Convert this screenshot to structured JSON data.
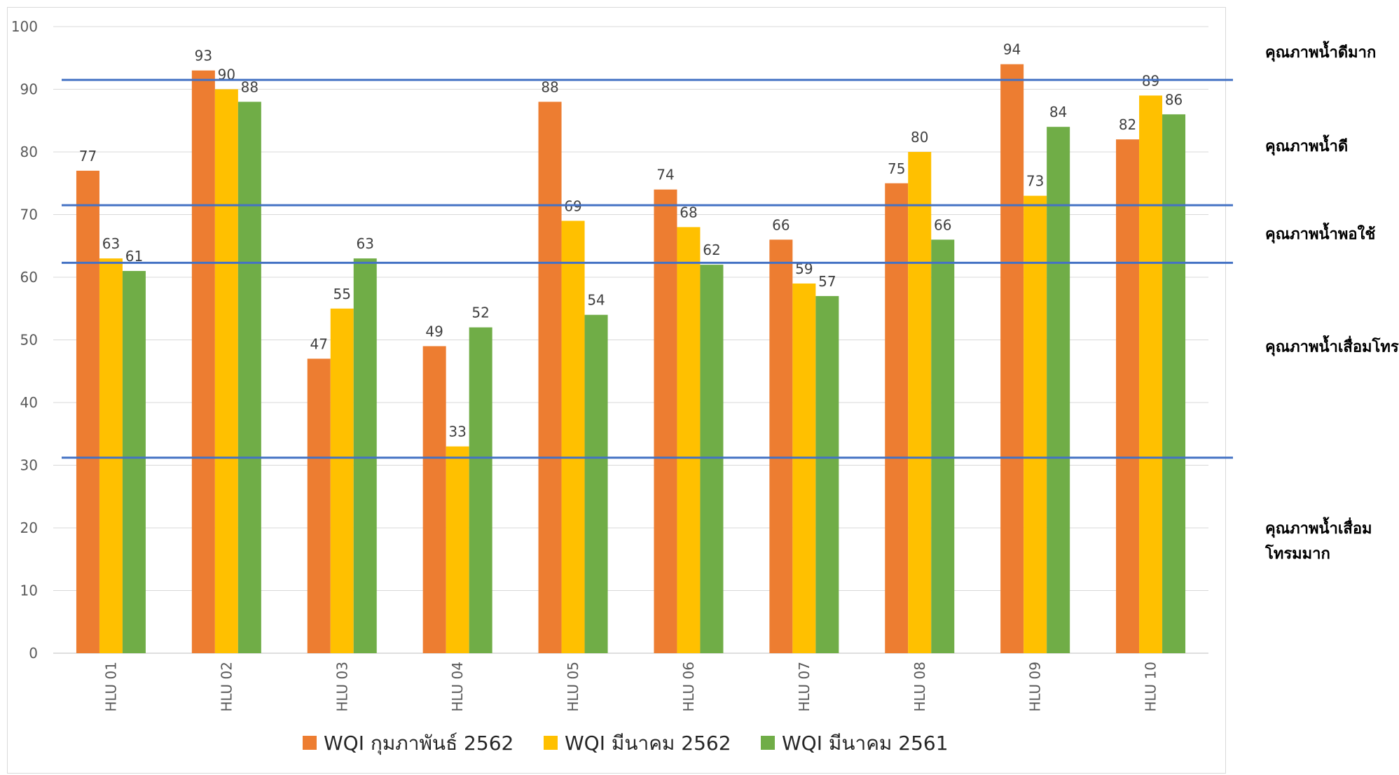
{
  "chart_data": {
    "type": "bar",
    "categories": [
      "HLU 01",
      "HLU 02",
      "HLU 03",
      "HLU 04",
      "HLU 05",
      "HLU 06",
      "HLU 07",
      "HLU 08",
      "HLU 09",
      "HLU 10"
    ],
    "series": [
      {
        "name": "WQI กุมภาพันธ์ 2562",
        "color": "#ED7D31",
        "values": [
          77,
          93,
          47,
          49,
          88,
          74,
          66,
          75,
          94,
          82
        ]
      },
      {
        "name": "WQI มีนาคม 2562",
        "color": "#FFC000",
        "values": [
          63,
          90,
          55,
          33,
          69,
          68,
          59,
          80,
          73,
          89
        ]
      },
      {
        "name": "WQI มีนาคม 2561",
        "color": "#70AD47",
        "values": [
          61,
          88,
          63,
          52,
          54,
          62,
          57,
          66,
          84,
          86
        ]
      }
    ],
    "ylim": [
      0,
      100
    ],
    "yticks": [
      0,
      10,
      20,
      30,
      40,
      50,
      60,
      70,
      80,
      90,
      100
    ],
    "grid": true,
    "legend": "bottom",
    "threshold_lines": {
      "color": "#4472C4",
      "values": [
        91.5,
        71.5,
        62.3,
        31.2
      ]
    },
    "quality_bands": [
      {
        "lines": [
          "คุณภาพน้ำดีมาก"
        ],
        "y": 96
      },
      {
        "lines": [
          "คุณภาพน้ำดี"
        ],
        "y": 81
      },
      {
        "lines": [
          "คุณภาพน้ำพอใช้"
        ],
        "y": 67
      },
      {
        "lines": [
          "คุณภาพน้ำเสื่อมโทรม"
        ],
        "y": 49
      },
      {
        "lines": [
          "คุณภาพน้ำเสื่อม",
          "โทรมมาก"
        ],
        "y": 20
      }
    ]
  }
}
